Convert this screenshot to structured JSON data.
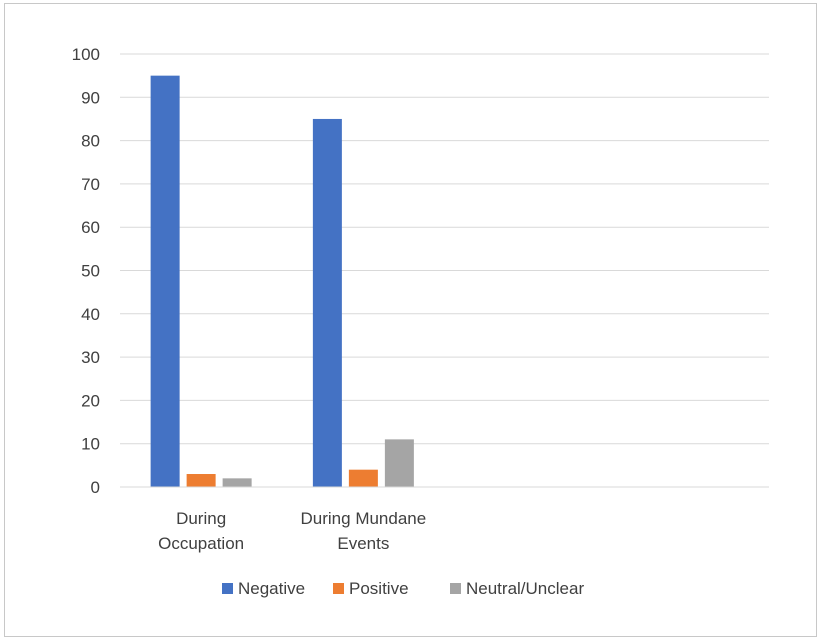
{
  "chart_data": {
    "type": "bar",
    "title": "",
    "xlabel": "",
    "ylabel": "",
    "categories": [
      [
        "During",
        "Occupation"
      ],
      [
        "During Mundane",
        "Events"
      ],
      [],
      []
    ],
    "series": [
      {
        "name": "Negative",
        "color": "#4472c4",
        "values": [
          95,
          85,
          null,
          null
        ]
      },
      {
        "name": "Positive",
        "color": "#ed7d31",
        "values": [
          3,
          4,
          null,
          null
        ]
      },
      {
        "name": "Neutral/Unclear",
        "color": "#a5a5a5",
        "values": [
          2,
          11,
          null,
          null
        ]
      }
    ],
    "ylim": [
      0,
      100
    ],
    "yticks": [
      0,
      10,
      20,
      30,
      40,
      50,
      60,
      70,
      80,
      90,
      100
    ],
    "grid": true,
    "legend": "bottom",
    "colors": {
      "grid": "#d9d9d9",
      "text": "#404040"
    }
  }
}
